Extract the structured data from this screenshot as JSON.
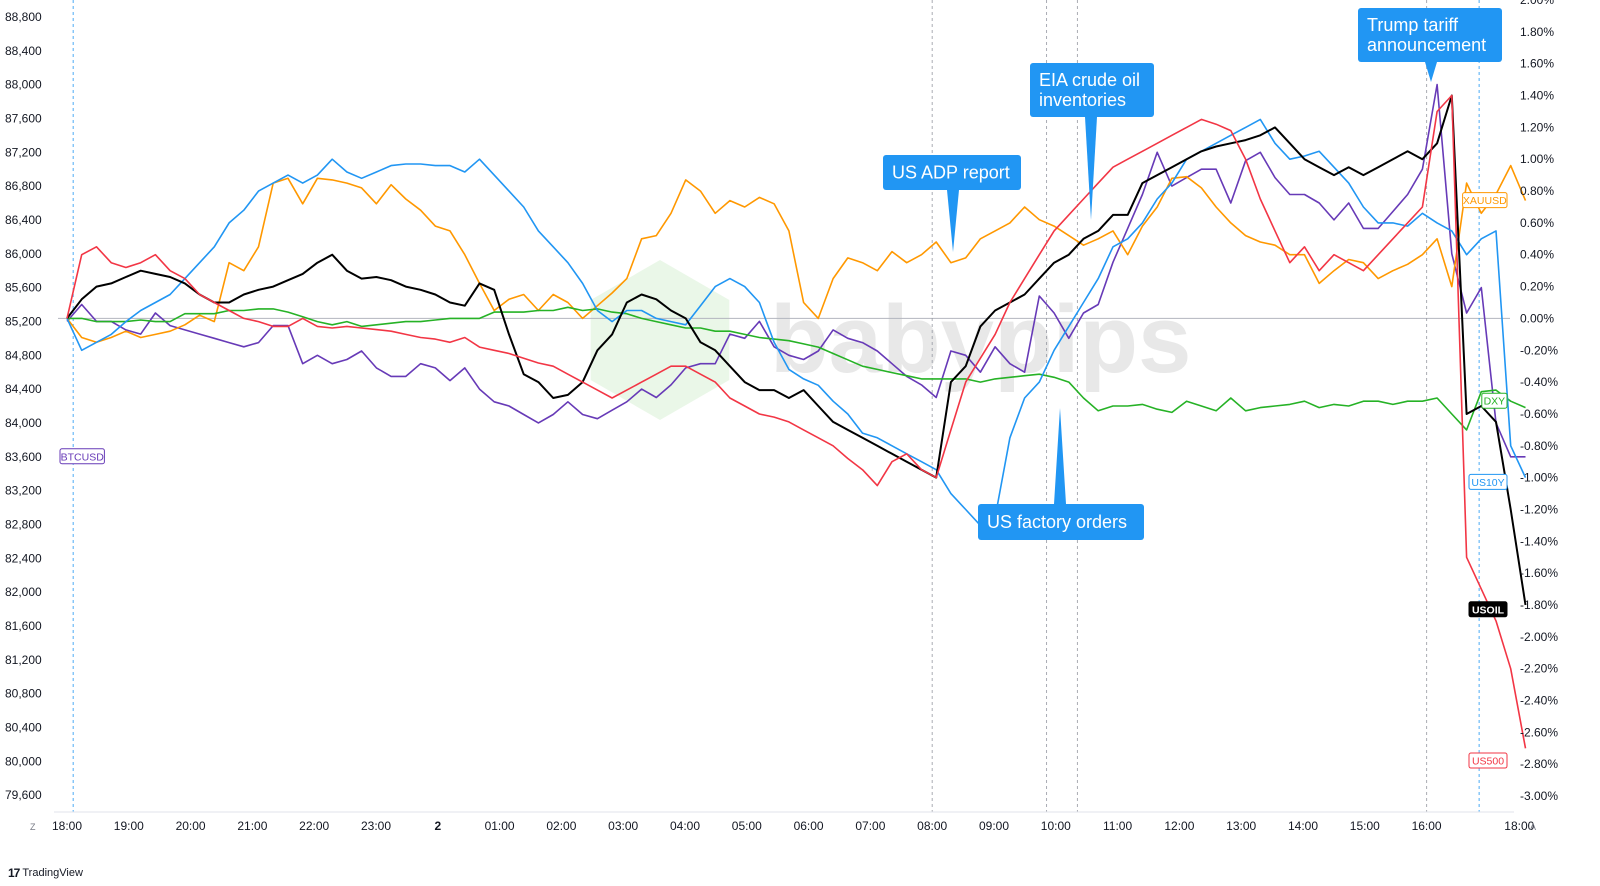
{
  "chart_data": {
    "type": "line",
    "watermark": "babypips",
    "x_labels": [
      "18:00",
      "19:00",
      "20:00",
      "21:00",
      "22:00",
      "23:00",
      "2",
      "01:00",
      "02:00",
      "03:00",
      "04:00",
      "05:00",
      "06:00",
      "07:00",
      "08:00",
      "09:00",
      "10:00",
      "11:00",
      "12:00",
      "13:00",
      "14:00",
      "15:00",
      "16:00",
      "18:00"
    ],
    "left_axis": {
      "ticks": [
        88800,
        88400,
        88000,
        87600,
        87200,
        86800,
        86400,
        86000,
        85600,
        85200,
        84800,
        84400,
        84000,
        83600,
        83200,
        82800,
        82400,
        82000,
        81600,
        81200,
        80800,
        80400,
        80000,
        79600
      ],
      "range": [
        79400,
        89000
      ]
    },
    "right_axis": {
      "ticks": [
        "2.00%",
        "1.80%",
        "1.60%",
        "1.40%",
        "1.20%",
        "1.00%",
        "0.80%",
        "0.60%",
        "0.40%",
        "0.20%",
        "0.00%",
        "-0.20%",
        "-0.40%",
        "-0.60%",
        "-0.80%",
        "-1.00%",
        "-1.20%",
        "-1.40%",
        "-1.60%",
        "-1.80%",
        "-2.00%",
        "-2.20%",
        "-2.40%",
        "-2.60%",
        "-2.80%",
        "-3.00%"
      ],
      "range": [
        -3.1,
        2.0
      ]
    },
    "vlines": [
      0.1,
      14.0,
      15.85,
      16.35,
      22.0,
      22.85
    ],
    "series": [
      {
        "name": "BTCUSD",
        "color": "#673ab7",
        "label_at": 83600,
        "y": [
          85200,
          85400,
          85200,
          85200,
          85100,
          85050,
          85300,
          85150,
          85100,
          85050,
          85000,
          84950,
          84900,
          84950,
          85150,
          85150,
          84700,
          84800,
          84700,
          84750,
          84850,
          84650,
          84550,
          84550,
          84700,
          84650,
          84500,
          84650,
          84400,
          84250,
          84200,
          84100,
          84000,
          84100,
          84250,
          84100,
          84050,
          84150,
          84250,
          84400,
          84300,
          84450,
          84650,
          84700,
          84700,
          85050,
          85000,
          85200,
          84900,
          84800,
          84750,
          84850,
          85100,
          85000,
          84950,
          84850,
          84700,
          84550,
          84450,
          84300,
          84850,
          84800,
          84600,
          84900,
          84700,
          84600,
          85500,
          85300,
          85000,
          85300,
          85400,
          85900,
          86300,
          86700,
          87200,
          86800,
          86900,
          87000,
          87000,
          86600,
          87100,
          87200,
          86900,
          86700,
          86700,
          86600,
          86400,
          86600,
          86300,
          86300,
          86500,
          86700,
          87000,
          88000,
          86000,
          85300,
          85600,
          84000,
          83600,
          83600
        ]
      },
      {
        "name": "XAUUSD",
        "color": "#ff9800",
        "label_at": 0.74,
        "y": [
          0.0,
          -0.12,
          -0.15,
          -0.12,
          -0.08,
          -0.12,
          -0.1,
          -0.08,
          -0.04,
          0.02,
          -0.02,
          0.35,
          0.3,
          0.45,
          0.85,
          0.88,
          0.72,
          0.88,
          0.87,
          0.85,
          0.82,
          0.72,
          0.84,
          0.75,
          0.68,
          0.58,
          0.55,
          0.4,
          0.22,
          0.05,
          0.12,
          0.15,
          0.05,
          0.15,
          0.1,
          0.0,
          0.08,
          0.16,
          0.25,
          0.5,
          0.52,
          0.66,
          0.87,
          0.8,
          0.66,
          0.74,
          0.7,
          0.76,
          0.72,
          0.55,
          0.1,
          0.0,
          0.25,
          0.38,
          0.35,
          0.3,
          0.42,
          0.35,
          0.4,
          0.48,
          0.35,
          0.38,
          0.5,
          0.55,
          0.6,
          0.7,
          0.62,
          0.58,
          0.52,
          0.46,
          0.5,
          0.55,
          0.4,
          0.58,
          0.7,
          0.88,
          0.89,
          0.82,
          0.7,
          0.6,
          0.52,
          0.48,
          0.46,
          0.4,
          0.4,
          0.22,
          0.3,
          0.37,
          0.35,
          0.25,
          0.3,
          0.34,
          0.4,
          0.5,
          0.2,
          0.85,
          0.66,
          0.78,
          0.96,
          0.74
        ]
      },
      {
        "name": "DXY",
        "color": "#26b226",
        "label_at": -0.52,
        "y": [
          0.0,
          0.0,
          -0.02,
          -0.02,
          -0.02,
          -0.01,
          -0.02,
          -0.02,
          0.03,
          0.03,
          0.03,
          0.05,
          0.05,
          0.06,
          0.06,
          0.04,
          0.01,
          -0.02,
          -0.04,
          -0.02,
          -0.05,
          -0.04,
          -0.03,
          -0.02,
          -0.02,
          -0.01,
          0.0,
          0.0,
          0.0,
          0.04,
          0.04,
          0.04,
          0.05,
          0.05,
          0.07,
          0.05,
          0.06,
          0.04,
          0.03,
          0.0,
          -0.02,
          -0.04,
          -0.06,
          -0.06,
          -0.08,
          -0.08,
          -0.1,
          -0.12,
          -0.13,
          -0.14,
          -0.16,
          -0.18,
          -0.22,
          -0.26,
          -0.3,
          -0.32,
          -0.34,
          -0.36,
          -0.38,
          -0.38,
          -0.38,
          -0.38,
          -0.4,
          -0.38,
          -0.37,
          -0.36,
          -0.35,
          -0.37,
          -0.4,
          -0.5,
          -0.58,
          -0.55,
          -0.55,
          -0.54,
          -0.57,
          -0.59,
          -0.52,
          -0.55,
          -0.58,
          -0.5,
          -0.58,
          -0.56,
          -0.55,
          -0.54,
          -0.52,
          -0.56,
          -0.54,
          -0.55,
          -0.52,
          -0.52,
          -0.54,
          -0.52,
          -0.52,
          -0.5,
          -0.6,
          -0.7,
          -0.46,
          -0.45,
          -0.52,
          -0.56
        ]
      },
      {
        "name": "US10Y",
        "color": "#2196f3",
        "label_at": -1.03,
        "y": [
          0.0,
          -0.2,
          -0.15,
          -0.1,
          -0.02,
          0.05,
          0.1,
          0.15,
          0.25,
          0.35,
          0.45,
          0.6,
          0.68,
          0.8,
          0.85,
          0.9,
          0.85,
          0.9,
          1.0,
          0.92,
          0.88,
          0.92,
          0.96,
          0.97,
          0.97,
          0.96,
          0.96,
          0.92,
          1.0,
          0.9,
          0.8,
          0.7,
          0.55,
          0.45,
          0.35,
          0.22,
          0.05,
          -0.02,
          0.05,
          0.05,
          0.0,
          -0.02,
          -0.04,
          0.08,
          0.2,
          0.25,
          0.2,
          0.1,
          -0.15,
          -0.32,
          -0.38,
          -0.42,
          -0.52,
          -0.6,
          -0.72,
          -0.75,
          -0.8,
          -0.85,
          -0.9,
          -0.95,
          -1.1,
          -1.2,
          -1.3,
          -1.25,
          -0.75,
          -0.5,
          -0.4,
          -0.2,
          -0.05,
          0.1,
          0.25,
          0.45,
          0.5,
          0.6,
          0.75,
          0.85,
          1.0,
          1.05,
          1.1,
          1.15,
          1.2,
          1.25,
          1.1,
          1.0,
          1.02,
          1.05,
          0.95,
          0.85,
          0.7,
          0.6,
          0.6,
          0.58,
          0.66,
          0.6,
          0.55,
          0.4,
          0.5,
          0.55,
          -0.8,
          -1.0
        ]
      },
      {
        "name": "USOIL",
        "color": "#000000",
        "label_at": -1.83,
        "y": [
          0.0,
          0.12,
          0.2,
          0.22,
          0.26,
          0.3,
          0.28,
          0.26,
          0.22,
          0.15,
          0.1,
          0.1,
          0.15,
          0.18,
          0.2,
          0.24,
          0.28,
          0.35,
          0.4,
          0.3,
          0.25,
          0.26,
          0.24,
          0.2,
          0.18,
          0.15,
          0.1,
          0.08,
          0.22,
          0.18,
          -0.1,
          -0.35,
          -0.4,
          -0.5,
          -0.48,
          -0.4,
          -0.2,
          -0.1,
          0.1,
          0.15,
          0.12,
          0.05,
          0.0,
          -0.15,
          -0.2,
          -0.3,
          -0.4,
          -0.45,
          -0.45,
          -0.5,
          -0.45,
          -0.55,
          -0.65,
          -0.7,
          -0.75,
          -0.8,
          -0.85,
          -0.9,
          -0.95,
          -1.0,
          -0.4,
          -0.3,
          -0.05,
          0.05,
          0.1,
          0.15,
          0.25,
          0.35,
          0.4,
          0.5,
          0.55,
          0.65,
          0.65,
          0.85,
          0.9,
          0.95,
          1.0,
          1.05,
          1.08,
          1.1,
          1.12,
          1.15,
          1.2,
          1.1,
          1.0,
          0.95,
          0.9,
          0.95,
          0.9,
          0.95,
          1.0,
          1.05,
          1.0,
          1.1,
          1.4,
          -0.6,
          -0.55,
          -0.65,
          -1.2,
          -1.8
        ]
      },
      {
        "name": "US500",
        "color": "#f23645",
        "label_at": -2.78,
        "y": [
          0.0,
          0.4,
          0.45,
          0.35,
          0.32,
          0.35,
          0.4,
          0.3,
          0.25,
          0.15,
          0.1,
          0.05,
          0.0,
          -0.02,
          -0.05,
          -0.05,
          0.0,
          -0.05,
          -0.06,
          -0.05,
          -0.06,
          -0.07,
          -0.08,
          -0.1,
          -0.12,
          -0.13,
          -0.15,
          -0.12,
          -0.18,
          -0.2,
          -0.22,
          -0.25,
          -0.28,
          -0.3,
          -0.35,
          -0.4,
          -0.45,
          -0.5,
          -0.45,
          -0.4,
          -0.35,
          -0.3,
          -0.3,
          -0.35,
          -0.4,
          -0.5,
          -0.55,
          -0.6,
          -0.62,
          -0.65,
          -0.7,
          -0.75,
          -0.8,
          -0.88,
          -0.95,
          -1.05,
          -0.9,
          -0.85,
          -0.95,
          -1.0,
          -0.7,
          -0.4,
          -0.25,
          -0.1,
          0.1,
          0.25,
          0.4,
          0.55,
          0.65,
          0.75,
          0.85,
          0.95,
          1.0,
          1.05,
          1.1,
          1.15,
          1.2,
          1.25,
          1.22,
          1.18,
          1.0,
          0.75,
          0.55,
          0.35,
          0.45,
          0.3,
          0.4,
          0.35,
          0.3,
          0.4,
          0.5,
          0.6,
          0.7,
          1.3,
          1.4,
          -1.5,
          -1.7,
          -1.9,
          -2.2,
          -2.7
        ]
      }
    ],
    "annotations": [
      {
        "text_lines": [
          "US ADP report"
        ],
        "color": "#2196f3",
        "pointer": "down"
      },
      {
        "text_lines": [
          "EIA crude oil",
          "inventories"
        ],
        "color": "#2196f3",
        "pointer": "down"
      },
      {
        "text_lines": [
          "US factory orders"
        ],
        "color": "#2196f3",
        "pointer": "up"
      },
      {
        "text_lines": [
          "Trump tariff",
          "announcement"
        ],
        "color": "#2196f3",
        "pointer": "down"
      }
    ]
  },
  "footer": {
    "brand": "TradingView",
    "left_button": "Z",
    "right_button": "A"
  }
}
